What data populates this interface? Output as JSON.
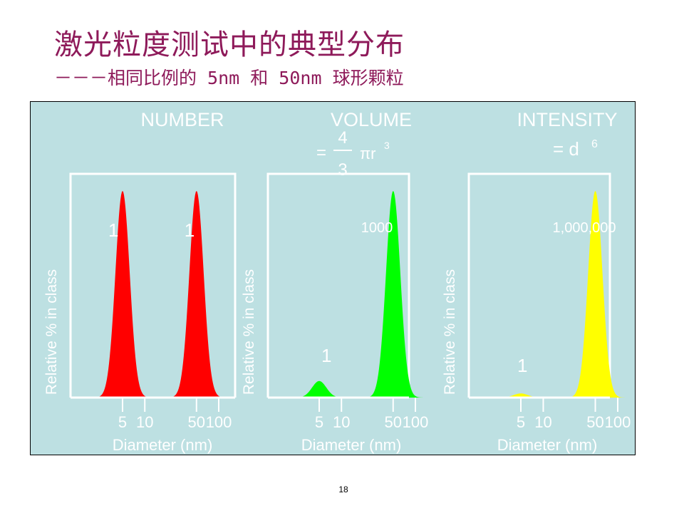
{
  "title": "激光粒度测试中的典型分布",
  "subtitle": "－－－相同比例的 5nm 和 50nm 球形颗粒",
  "page_number": "18",
  "colors": {
    "background": "#bde0e2",
    "title": "#8e1a5a",
    "axes": "#ffffff",
    "number": "#ff0000",
    "volume": "#00ff00",
    "intensity": "#ffff00"
  },
  "panels": [
    {
      "heading": "NUMBER",
      "formula": {
        "text": "",
        "fraction_num": "",
        "fraction_den": "",
        "suffix": "",
        "sup": ""
      },
      "ylabel": "Relative % in class",
      "xlabel": "Diameter (nm)"
    },
    {
      "heading": "VOLUME",
      "formula": {
        "text": "",
        "fraction_num": "4",
        "fraction_den": "3",
        "suffix": "πr",
        "sup": "3"
      },
      "ylabel": "Relative % in class",
      "xlabel": "Diameter (nm)"
    },
    {
      "heading": "INTENSITY",
      "formula": {
        "text": "= d",
        "fraction_num": "",
        "fraction_den": "",
        "suffix": "",
        "sup": "6"
      },
      "ylabel": "Relative % in class",
      "xlabel": "Diameter (nm)"
    }
  ],
  "chart_data": [
    {
      "type": "area",
      "title": "NUMBER",
      "xlabel": "Diameter (nm)",
      "ylabel": "Relative % in class",
      "xscale": "log",
      "xlim": [
        1,
        100
      ],
      "x_ticks": [
        5,
        10,
        50,
        100
      ],
      "x_tick_labels": [
        "5",
        "10",
        "50",
        "100"
      ],
      "color": "#ff0000",
      "peaks": [
        {
          "x": 5,
          "height": 1.0,
          "label": "1"
        },
        {
          "x": 50,
          "height": 1.0,
          "label": "1"
        }
      ]
    },
    {
      "type": "area",
      "title": "VOLUME",
      "xlabel": "Diameter (nm)",
      "ylabel": "Relative % in class",
      "xscale": "log",
      "xlim": [
        1,
        100
      ],
      "x_ticks": [
        5,
        10,
        50,
        100
      ],
      "x_tick_labels": [
        "5",
        "10",
        "50",
        "100"
      ],
      "color": "#00ff00",
      "peaks": [
        {
          "x": 5,
          "height": 0.08,
          "label": "1"
        },
        {
          "x": 50,
          "height": 1.0,
          "label": "1000"
        }
      ]
    },
    {
      "type": "area",
      "title": "INTENSITY",
      "xlabel": "Diameter (nm)",
      "ylabel": "Relative % in class",
      "xscale": "log",
      "xlim": [
        1,
        100
      ],
      "x_ticks": [
        5,
        10,
        50,
        100
      ],
      "x_tick_labels": [
        "5",
        "10",
        "50",
        "100"
      ],
      "color": "#ffff00",
      "peaks": [
        {
          "x": 5,
          "height": 0.02,
          "label": "1"
        },
        {
          "x": 50,
          "height": 1.0,
          "label": "1,000,000"
        }
      ]
    }
  ]
}
